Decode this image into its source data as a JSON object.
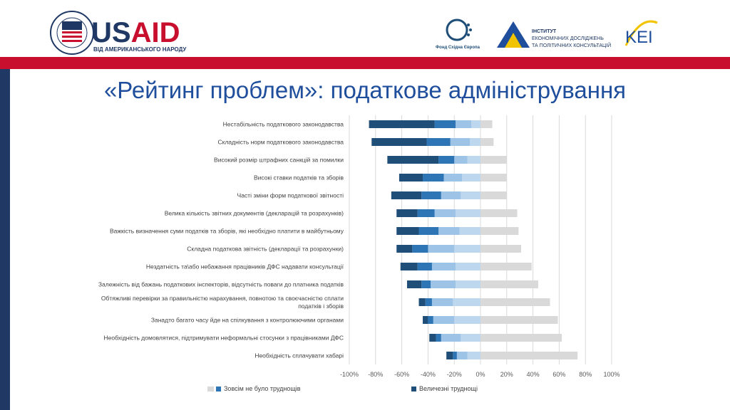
{
  "header": {
    "usaid": {
      "name": "USAID",
      "tagline": "ВІД АМЕРИКАНСЬКОГО НАРОДУ",
      "seal_text": "UNITED STATES AGENCY INTERNATIONAL DEVELOPMENT"
    },
    "fund": {
      "name": "Фонд Східна Європа"
    },
    "institute": {
      "line1": "ІНСТИТУТ",
      "line2": "ЕКОНОМІЧНИХ ДОСЛІДЖЕНЬ",
      "line3": "ТА ПОЛІТИЧНИХ КОНСУЛЬТАЦІЙ"
    },
    "kei": {
      "name": "KEI"
    }
  },
  "title": "«Рейтинг проблем»: податкове адміністрування",
  "colors": {
    "header_band": "#c8102e",
    "side_stripe": "#1f3864",
    "title": "#1f4e9c",
    "series": [
      "#d9d9d9",
      "#bdd7ee",
      "#9dc3e6",
      "#2e75b6",
      "#1f4e79"
    ]
  },
  "chart_data": {
    "type": "bar",
    "orientation": "horizontal-diverging-stacked",
    "categories": [
      "Нестабільність податкового законодавства",
      "Складність норм податкового законодавства",
      "Високий розмір штрафних санкцій за помилки",
      "Високі ставки податків та зборів",
      "Часті зміни форм податкової звітності",
      "Велика кількість звітних документів (декларацій та розрахунків)",
      "Важкість визначення суми податків та зборів, які необхідно платити в майбутньому",
      "Складна податкова звітність (декларації та розрахунки)",
      "Нездатність та\\або небажання працівників ДФС надавати консультації",
      "Залежність від бажань податкових інспекторів, відсутність поваги до платника податків",
      [
        "Обтяжливі перевірки за правильністю нарахування, повнотою та своєчасністю сплати",
        "податків і зборів"
      ],
      "Занадто багато часу йде на спілкування з контролюючими органами",
      "Необхідність домовлятися, підтримувати неформальні стосунки з працівниками ДФС",
      "Необхідність сплачувати хабарі"
    ],
    "series": [
      {
        "name": "Зовсім не було труднощів",
        "color": "#d9d9d9",
        "side": "positive",
        "values": [
          9,
          10,
          20,
          20,
          20,
          28,
          29,
          31,
          39,
          44,
          53,
          59,
          62,
          74
        ]
      },
      {
        "color": "#bdd7ee",
        "side": "negative",
        "values": [
          7,
          8,
          10,
          14,
          15,
          19,
          16,
          20,
          19,
          19,
          21,
          20,
          15,
          10
        ]
      },
      {
        "color": "#9dc3e6",
        "side": "negative",
        "values": [
          12,
          15,
          10,
          14,
          15,
          16,
          16,
          20,
          18,
          19,
          16,
          16,
          15,
          8
        ]
      },
      {
        "color": "#2e75b6",
        "side": "negative",
        "values": [
          16,
          18,
          12,
          16,
          15,
          13,
          15,
          12,
          11,
          7,
          5,
          4,
          4,
          3
        ]
      },
      {
        "name": "Величезні труднощі",
        "color": "#1f4e79",
        "side": "negative",
        "values": [
          50,
          42,
          39,
          18,
          23,
          16,
          17,
          12,
          13,
          11,
          5,
          4,
          5,
          5
        ]
      }
    ],
    "xlim": [
      -100,
      100
    ],
    "xticks": [
      "-100%",
      "-80%",
      "-60%",
      "-40%",
      "-20%",
      "0%",
      "20%",
      "40%",
      "60%",
      "80%",
      "100%"
    ],
    "grid": true,
    "legend_position": "bottom"
  }
}
